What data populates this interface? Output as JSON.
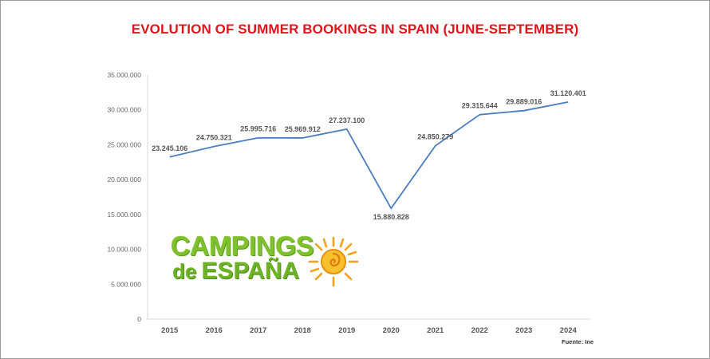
{
  "title": "EVOLUTION OF SUMMER BOOKINGS IN SPAIN (JUNE-SEPTEMBER)",
  "source": "Fuente: Ine",
  "logo": {
    "line1": "CAMPINGS",
    "line2_small": "de",
    "line2": "ESPAÑA"
  },
  "colors": {
    "title": "#e0151b",
    "line": "#4a7cc0",
    "logo_green": "#7fc02e",
    "logo_sun": "#f0a21a"
  },
  "chart_data": {
    "type": "line",
    "title": "EVOLUTION OF SUMMER BOOKINGS IN SPAIN (JUNE-SEPTEMBER)",
    "categories": [
      "2015",
      "2016",
      "2017",
      "2018",
      "2019",
      "2020",
      "2021",
      "2022",
      "2023",
      "2024"
    ],
    "values": [
      23245106,
      24750321,
      25995716,
      25969912,
      27237100,
      15880828,
      24850279,
      29315644,
      29889016,
      31120401
    ],
    "value_labels": [
      "23.245.106",
      "24.750.321",
      "25.995.716",
      "25.969.912",
      "27.237.100",
      "15.880.828",
      "24.850.279",
      "29.315.644",
      "29.889.016",
      "31.120.401"
    ],
    "y_ticks": [
      0,
      5000000,
      10000000,
      15000000,
      20000000,
      25000000,
      30000000,
      35000000
    ],
    "y_tick_labels": [
      "0",
      "5.000.000",
      "10.000.000",
      "15.000.000",
      "20.000.000",
      "25.000.000",
      "30.000.000",
      "35.000.000"
    ],
    "ylim": [
      0,
      35000000
    ],
    "xlabel": "",
    "ylabel": "",
    "grid": false,
    "legend": "none"
  }
}
